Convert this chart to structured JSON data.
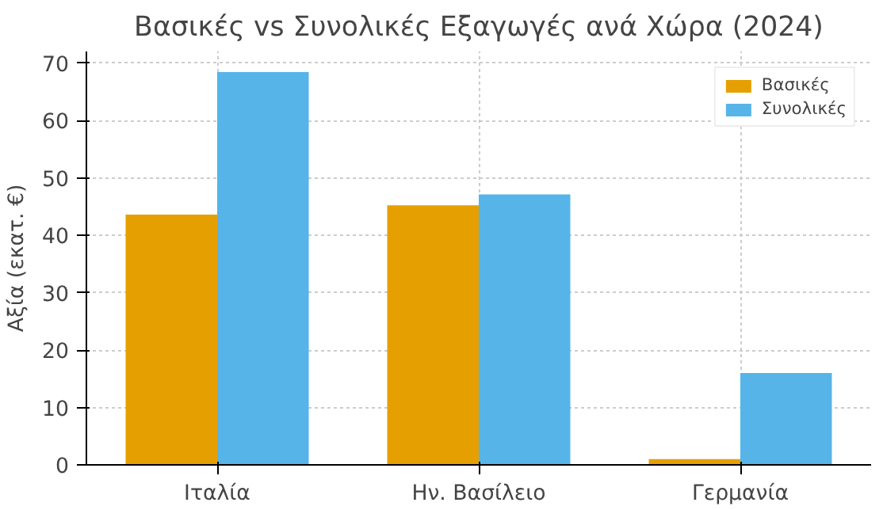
{
  "chart_data": {
    "type": "bar",
    "title": "Βασικές vs Συνολικές Εξαγωγές ανά Χώρα (2024)",
    "ylabel": "Αξία (εκατ. €)",
    "categories": [
      "Ιταλία",
      "Ην. Βασίλειο",
      "Γερμανία"
    ],
    "series": [
      {
        "name": "Βασικές",
        "color": "#e69f00",
        "values": [
          43.6,
          45.2,
          1.0
        ]
      },
      {
        "name": "Συνολικές",
        "color": "#56b4e9",
        "values": [
          68.4,
          47.1,
          16.0
        ]
      }
    ],
    "ylim": [
      0,
      72
    ],
    "yticks": [
      0,
      10,
      20,
      30,
      40,
      50,
      60,
      70
    ],
    "grid": true,
    "legend": "top right"
  }
}
